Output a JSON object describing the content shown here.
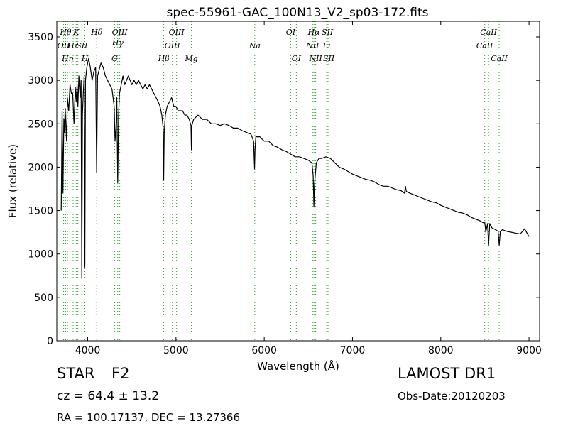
{
  "chart_data": {
    "type": "line",
    "title": "spec-55961-GAC_100N13_V2_sp03-172.fits",
    "xlabel": "Wavelength (Å)",
    "ylabel": "Flux (relative)",
    "xlim": [
      3650,
      9120
    ],
    "ylim": [
      0,
      3680
    ],
    "xticks": [
      4000,
      5000,
      6000,
      7000,
      8000,
      9000
    ],
    "yticks": [
      0,
      500,
      1000,
      1500,
      2000,
      2500,
      3000,
      3500
    ],
    "grid": false,
    "line_color": "#000000",
    "marker_color": "#2ca02c",
    "series": [
      {
        "x": [
          3700,
          3710,
          3720,
          3730,
          3735,
          3745,
          3760,
          3770,
          3785,
          3800,
          3815,
          3830,
          3845,
          3860,
          3870,
          3880,
          3889,
          3900,
          3915,
          3925,
          3933,
          3940,
          3950,
          3960,
          3968,
          3975,
          3990,
          4010,
          4030,
          4050,
          4070,
          4090,
          4101,
          4112,
          4125,
          4150,
          4175,
          4200,
          4225,
          4250,
          4275,
          4300,
          4310,
          4320,
          4330,
          4340,
          4350,
          4360,
          4380,
          4400,
          4420,
          4440,
          4460,
          4480,
          4500,
          4525,
          4550,
          4575,
          4600,
          4625,
          4650,
          4675,
          4700,
          4725,
          4750,
          4775,
          4800,
          4820,
          4840,
          4855,
          4861,
          4867,
          4880,
          4900,
          4925,
          4950,
          4975,
          5000,
          5025,
          5050,
          5075,
          5100,
          5125,
          5150,
          5170,
          5175,
          5180,
          5200,
          5250,
          5300,
          5350,
          5400,
          5450,
          5500,
          5550,
          5600,
          5650,
          5700,
          5750,
          5800,
          5850,
          5880,
          5890,
          5896,
          5905,
          5950,
          6000,
          6050,
          6100,
          6150,
          6200,
          6250,
          6300,
          6350,
          6400,
          6450,
          6500,
          6540,
          6555,
          6563,
          6570,
          6590,
          6620,
          6650,
          6700,
          6750,
          6800,
          6850,
          6900,
          6950,
          7000,
          7050,
          7100,
          7150,
          7200,
          7250,
          7300,
          7350,
          7400,
          7450,
          7500,
          7550,
          7590,
          7600,
          7610,
          7650,
          7700,
          7750,
          7800,
          7850,
          7900,
          7950,
          8000,
          8050,
          8100,
          8150,
          8200,
          8250,
          8300,
          8350,
          8400,
          8450,
          8480,
          8498,
          8510,
          8530,
          8542,
          8555,
          8580,
          8620,
          8650,
          8662,
          8675,
          8700,
          8750,
          8800,
          8850,
          8900,
          8950,
          9000
        ],
        "y": [
          1500,
          2650,
          1700,
          2550,
          2400,
          2680,
          2300,
          2800,
          2650,
          2950,
          2850,
          2850,
          2500,
          2920,
          2750,
          2950,
          2700,
          3050,
          2800,
          3000,
          720,
          2600,
          2850,
          3050,
          850,
          3000,
          3150,
          3250,
          3150,
          3000,
          3100,
          3150,
          1940,
          3050,
          3100,
          3200,
          3150,
          3050,
          3000,
          2950,
          2900,
          2700,
          2300,
          2450,
          2800,
          1820,
          2600,
          2850,
          2950,
          3050,
          2950,
          3000,
          3050,
          3000,
          2950,
          3000,
          2950,
          3000,
          2950,
          2900,
          2950,
          2900,
          2950,
          2900,
          2850,
          2800,
          2750,
          2700,
          2600,
          2450,
          1850,
          2400,
          2600,
          2700,
          2750,
          2800,
          2700,
          2700,
          2650,
          2650,
          2650,
          2600,
          2600,
          2550,
          2480,
          2200,
          2480,
          2550,
          2600,
          2550,
          2550,
          2500,
          2500,
          2480,
          2500,
          2480,
          2450,
          2450,
          2420,
          2400,
          2380,
          2300,
          1980,
          2200,
          2350,
          2350,
          2300,
          2300,
          2250,
          2230,
          2200,
          2180,
          2150,
          2120,
          2120,
          2100,
          2080,
          2050,
          1900,
          1540,
          1800,
          2050,
          2100,
          2100,
          2120,
          2100,
          2050,
          2000,
          1980,
          1950,
          1920,
          1900,
          1880,
          1860,
          1850,
          1830,
          1800,
          1780,
          1780,
          1760,
          1740,
          1730,
          1700,
          1780,
          1720,
          1700,
          1680,
          1660,
          1640,
          1620,
          1600,
          1590,
          1560,
          1540,
          1520,
          1500,
          1480,
          1470,
          1450,
          1420,
          1400,
          1380,
          1360,
          1370,
          1250,
          1350,
          1100,
          1350,
          1300,
          1280,
          1260,
          1100,
          1260,
          1280,
          1260,
          1250,
          1240,
          1230,
          1290,
          1200
        ]
      }
    ],
    "line_markers": [
      {
        "wavelength": 3727,
        "labels": [
          "OII"
        ],
        "rows": [
          2
        ]
      },
      {
        "wavelength": 3750,
        "labels": [
          "Hθ"
        ],
        "rows": [
          0
        ]
      },
      {
        "wavelength": 3771,
        "labels": [
          "Hη"
        ],
        "rows": [
          3
        ]
      },
      {
        "wavelength": 3798,
        "labels": [],
        "rows": []
      },
      {
        "wavelength": 3835,
        "labels": [
          "Hε"
        ],
        "rows": [
          2
        ]
      },
      {
        "wavelength": 3869,
        "labels": [
          "K"
        ],
        "rows": [
          0
        ]
      },
      {
        "wavelength": 3889,
        "labels": [],
        "rows": []
      },
      {
        "wavelength": 3934,
        "labels": [
          "SII"
        ],
        "rows": [
          2
        ]
      },
      {
        "wavelength": 3968,
        "labels": [
          "H"
        ],
        "rows": [
          3
        ]
      },
      {
        "wavelength": 4102,
        "labels": [
          "Hδ"
        ],
        "rows": [
          0
        ]
      },
      {
        "wavelength": 4305,
        "labels": [
          "G"
        ],
        "rows": [
          3
        ]
      },
      {
        "wavelength": 4340,
        "labels": [
          "Hγ"
        ],
        "rows": [
          1
        ]
      },
      {
        "wavelength": 4363,
        "labels": [
          "OIII"
        ],
        "rows": [
          0
        ]
      },
      {
        "wavelength": 4861,
        "labels": [
          "Hβ"
        ],
        "rows": [
          3
        ]
      },
      {
        "wavelength": 4959,
        "labels": [
          "OIII"
        ],
        "rows": [
          2
        ]
      },
      {
        "wavelength": 5007,
        "labels": [
          "OIII"
        ],
        "rows": [
          0
        ]
      },
      {
        "wavelength": 5175,
        "labels": [
          "Mg"
        ],
        "rows": [
          3
        ]
      },
      {
        "wavelength": 5893,
        "labels": [
          "Na"
        ],
        "rows": [
          2
        ]
      },
      {
        "wavelength": 6300,
        "labels": [
          "OI"
        ],
        "rows": [
          0
        ]
      },
      {
        "wavelength": 6364,
        "labels": [
          "OI"
        ],
        "rows": [
          3
        ]
      },
      {
        "wavelength": 6548,
        "labels": [
          "NII"
        ],
        "rows": [
          2
        ]
      },
      {
        "wavelength": 6563,
        "labels": [
          "Hα"
        ],
        "rows": [
          0
        ]
      },
      {
        "wavelength": 6583,
        "labels": [
          "NII"
        ],
        "rows": [
          3
        ]
      },
      {
        "wavelength": 6708,
        "labels": [
          "Li"
        ],
        "rows": [
          2
        ]
      },
      {
        "wavelength": 6716,
        "labels": [
          "SII"
        ],
        "rows": [
          0
        ]
      },
      {
        "wavelength": 6731,
        "labels": [
          "SII"
        ],
        "rows": [
          3
        ]
      },
      {
        "wavelength": 8498,
        "labels": [
          "CaII"
        ],
        "rows": [
          2
        ]
      },
      {
        "wavelength": 8542,
        "labels": [
          "CaII"
        ],
        "rows": [
          0
        ]
      },
      {
        "wavelength": 8662,
        "labels": [
          "CaII"
        ],
        "rows": [
          3
        ]
      }
    ]
  },
  "info": {
    "class": "STAR",
    "subclass": "F2",
    "survey": "LAMOST DR1",
    "cz": "cz = 64.4  ± 13.2",
    "obs_date": "Obs-Date:20120203",
    "coords": "RA = 100.17137, DEC = 13.27366"
  }
}
